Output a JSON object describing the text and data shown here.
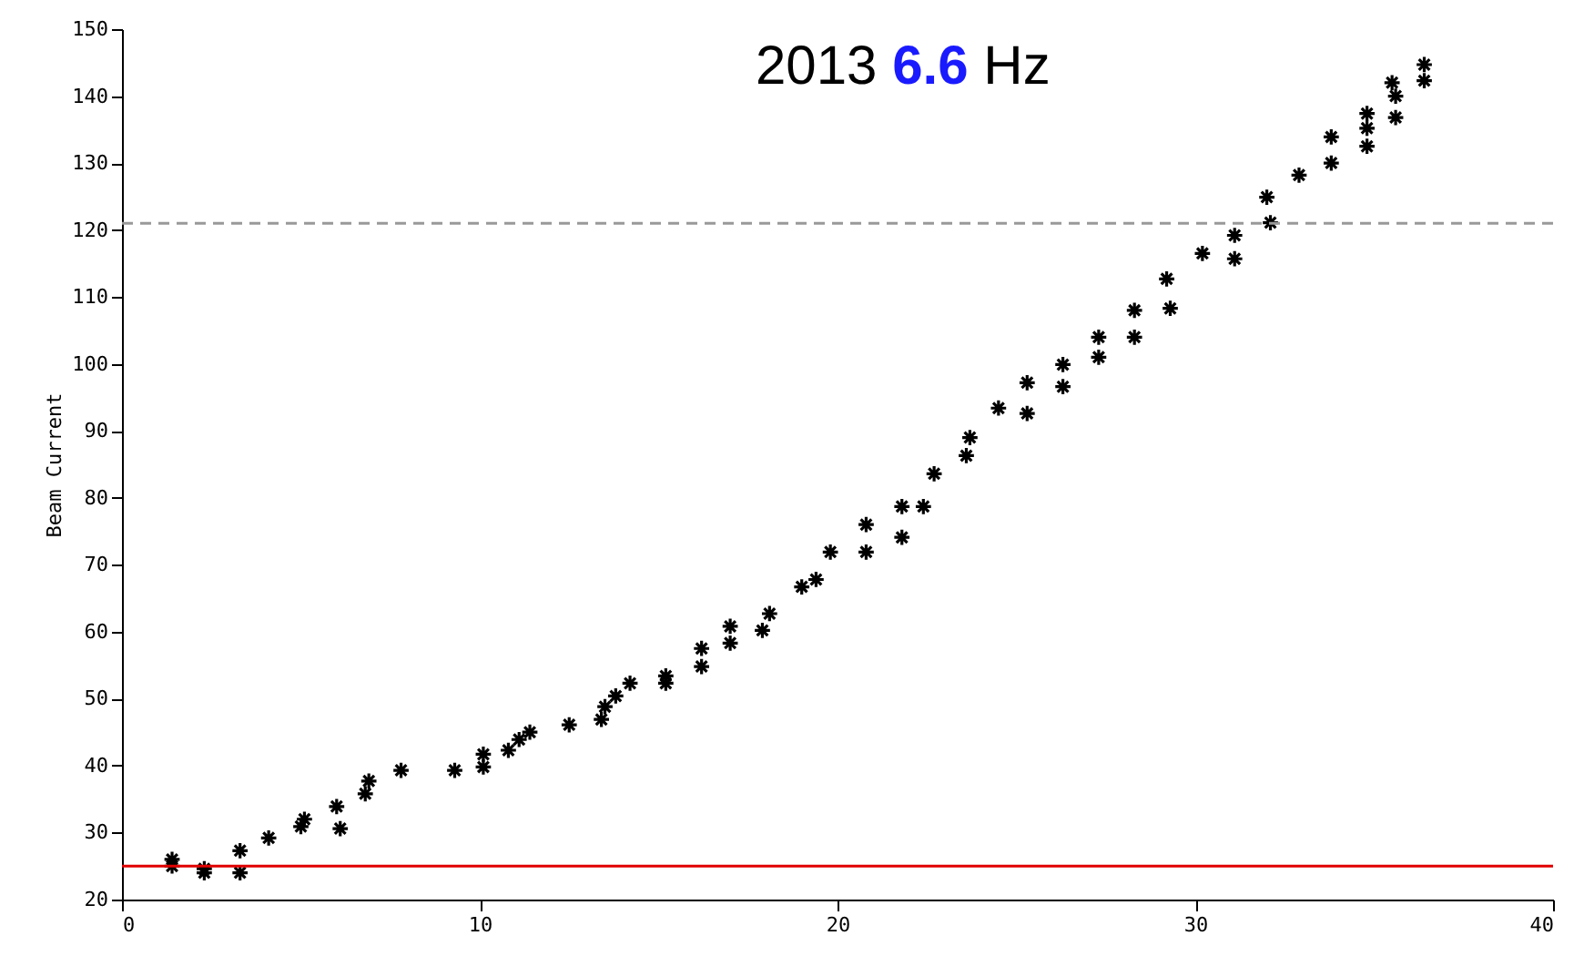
{
  "chart_data": {
    "type": "scatter",
    "title": "2013 6.6 Hz",
    "ylabel": "Beam Current",
    "marker": "cross",
    "grid": false,
    "xlim": [
      0,
      40
    ],
    "xticks": [
      0,
      10,
      20,
      30,
      40
    ],
    "ylim": [
      20,
      150
    ],
    "yticks": [
      20,
      30,
      40,
      50,
      60,
      70,
      80,
      90,
      100,
      110,
      120,
      130,
      140,
      150
    ],
    "ref_lines": [
      {
        "axis": "y",
        "value": 121,
        "label": null,
        "color": "#999999",
        "line_style": "dashed"
      },
      {
        "axis": "y",
        "value": 25,
        "label": null,
        "color": "#e00000",
        "line_style": "solid"
      }
    ],
    "series": [
      {
        "color": "#000000",
        "x": [
          1.4,
          1.4,
          2.3,
          2.3,
          3.3,
          3.3,
          4.1,
          5.0,
          5.1,
          6.0,
          6.1,
          6.8,
          6.9,
          7.8,
          9.3,
          10.1,
          10.1,
          10.8,
          11.1,
          11.4,
          12.5,
          13.4,
          13.5,
          13.8,
          14.2,
          15.2,
          15.2,
          16.2,
          16.2,
          17.0,
          17.0,
          17.9,
          18.1,
          19.0,
          19.4,
          19.8,
          20.8,
          20.8,
          21.8,
          21.8,
          22.4,
          22.7,
          23.6,
          23.7,
          24.5,
          25.3,
          25.3,
          26.3,
          26.3,
          27.3,
          27.3,
          28.3,
          28.3,
          29.3,
          29.2,
          30.2,
          31.1,
          31.1,
          32.1,
          32.0,
          32.9,
          33.8,
          33.8,
          34.8,
          34.8,
          34.8,
          35.6,
          35.6,
          35.5,
          36.4,
          36.4
        ],
        "values": [
          26,
          25,
          24.6,
          24,
          27.3,
          24,
          29.2,
          30.9,
          32,
          33.9,
          30.6,
          35.8,
          37.7,
          39.3,
          39.3,
          39.8,
          41.7,
          42.3,
          43.9,
          45,
          46.1,
          46.9,
          48.8,
          50.4,
          52.3,
          52.3,
          53.4,
          54.8,
          57.5,
          58.3,
          60.8,
          60.2,
          62.7,
          66.7,
          67.8,
          71.9,
          71.9,
          76,
          74.1,
          78.7,
          78.7,
          83.6,
          86.3,
          89,
          93.4,
          92.6,
          97.2,
          96.6,
          99.9,
          101,
          104,
          104,
          108,
          108.3,
          112.7,
          116.5,
          115.7,
          119.2,
          121.1,
          124.9,
          128.2,
          130,
          133.9,
          135.2,
          132.5,
          137.4,
          136.8,
          140,
          142,
          142.3,
          144.7
        ]
      }
    ]
  }
}
